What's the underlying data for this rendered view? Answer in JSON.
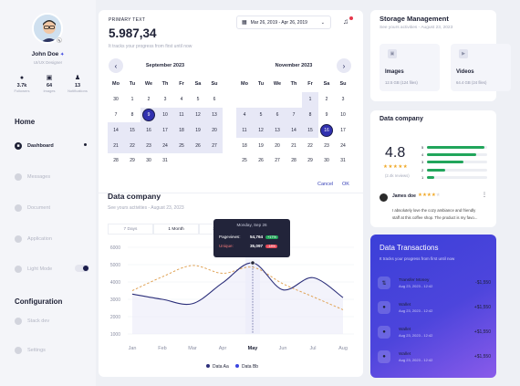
{
  "profile": {
    "name": "John Doe",
    "role": "UI/UX Designer",
    "badge": "PRO"
  },
  "stats": [
    {
      "icon": "user-icon",
      "value": "3.7k",
      "label": "Followers"
    },
    {
      "icon": "image-icon",
      "value": "64",
      "label": "Images"
    },
    {
      "icon": "bell-icon",
      "value": "13",
      "label": "Notifications"
    }
  ],
  "nav": {
    "home_title": "Home",
    "config_title": "Configuration",
    "items": [
      "Dashboard",
      "Messages",
      "Document",
      "Application",
      "Light Mode"
    ],
    "config_items": [
      "Stack dev",
      "Settings"
    ]
  },
  "primary": {
    "label": "PRIMARY TEXT",
    "value": "5.987,34",
    "subtitle": "It tracks your progress from first until now"
  },
  "date_range": "Mar 26, 2019 - Apr 26, 2019",
  "calendar": {
    "weekdays": [
      "Mo",
      "Tu",
      "We",
      "Th",
      "Fr",
      "Sa",
      "Su"
    ],
    "left": {
      "title": "September 2023",
      "days": [
        "30",
        "1",
        "2",
        "3",
        "4",
        "5",
        "6",
        "7",
        "8",
        "9",
        "10",
        "11",
        "12",
        "13",
        "14",
        "15",
        "16",
        "17",
        "18",
        "19",
        "20",
        "21",
        "22",
        "23",
        "24",
        "25",
        "26",
        "27",
        "28",
        "29",
        "30",
        "31"
      ]
    },
    "right": {
      "title": "November 2023",
      "days": [
        "",
        "",
        "",
        "",
        "1",
        "2",
        "3",
        "4",
        "5",
        "6",
        "7",
        "8",
        "9",
        "10",
        "11",
        "12",
        "13",
        "14",
        "15",
        "16",
        "17",
        "18",
        "19",
        "20",
        "21",
        "22",
        "23",
        "24",
        "25",
        "26",
        "27",
        "28",
        "29",
        "30",
        "31"
      ]
    },
    "cancel": "Cancel",
    "ok": "OK"
  },
  "data_company_chart": {
    "title": "Data company",
    "subtitle": "See yours activities - August 23, 2023",
    "tabs": [
      "7 Days",
      "1 Month",
      "3 Months"
    ],
    "tooltip": {
      "date": "Monday, Sep 26",
      "pageviews_label": "Pageviews:",
      "pageviews_value": "54,764",
      "pageviews_change": "+17%",
      "unique_label": "Unique:",
      "unique_value": "35,097",
      "unique_change": "-18%"
    }
  },
  "chart_data": {
    "type": "line",
    "categories": [
      "Jan",
      "Feb",
      "Mar",
      "Apr",
      "May",
      "Jun",
      "Jul",
      "Aug"
    ],
    "ylim": [
      1000,
      6000
    ],
    "yticks": [
      "6000",
      "5000",
      "4000",
      "3000",
      "2000",
      "1000"
    ],
    "series": [
      {
        "name": "Data Aa",
        "color": "#2c2f7a",
        "values": [
          3300,
          3000,
          2750,
          3950,
          5100,
          3550,
          4250,
          3100
        ]
      },
      {
        "name": "Data Bb",
        "color": "#e0a356",
        "values": [
          3500,
          4300,
          4950,
          4500,
          4850,
          3900,
          3150,
          2400
        ]
      }
    ],
    "legend": "bottom"
  },
  "storage": {
    "title": "Storage Management",
    "subtitle": "See yours activities - August 23, 2023",
    "folders": [
      {
        "icon": "image-icon",
        "name": "Images",
        "size": "12.5 GB (124 files)"
      },
      {
        "icon": "video-icon",
        "name": "Videos",
        "size": "64.4 GB (24 files)"
      }
    ]
  },
  "rating": {
    "title": "Data company",
    "score": "4.8",
    "reviews": "(2.4k reviews)",
    "stars_value": 4.5,
    "bars": [
      {
        "label": "5",
        "fraction": 0.95
      },
      {
        "label": "4",
        "fraction": 0.82
      },
      {
        "label": "3",
        "fraction": 0.6
      },
      {
        "label": "2",
        "fraction": 0.3
      },
      {
        "label": "1",
        "fraction": 0.12
      }
    ],
    "review": {
      "name": "James doe",
      "stars_value": 4,
      "line1": "I absolutely love the cozy ambiance and friendly",
      "line2": "staff at this coffee shop. The product is my favo..."
    }
  },
  "transactions": {
    "title": "Data Transactions",
    "subtitle": "It tracks your progress from first until now",
    "items": [
      {
        "icon": "transfer-icon",
        "name": "Transfer Money",
        "date": "Aug 23, 2023 - 12:42",
        "amount": "-$1,550"
      },
      {
        "icon": "wallet-icon",
        "name": "Wallet",
        "date": "Aug 23, 2023 - 12:42",
        "amount": "+$1,550"
      },
      {
        "icon": "wallet-icon",
        "name": "Wallet",
        "date": "Aug 23, 2023 - 12:42",
        "amount": "+$1,550"
      },
      {
        "icon": "wallet-icon",
        "name": "Wallet",
        "date": "Aug 23, 2023 - 12:42",
        "amount": "+$1,550"
      }
    ]
  }
}
